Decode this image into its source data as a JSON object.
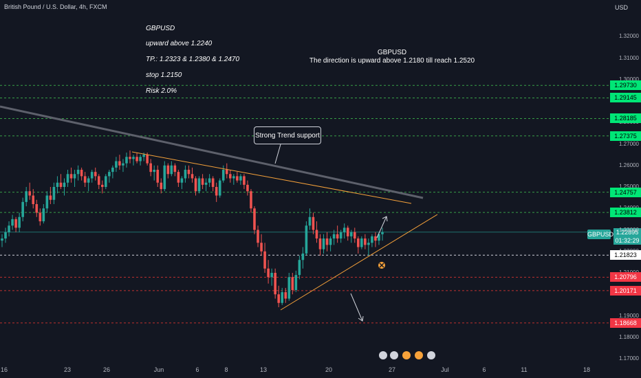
{
  "header": {
    "title": "British Pound / U.S. Dollar, 4h, FXCM",
    "currency": "USD"
  },
  "notes": {
    "left": [
      "GBPUSD",
      "upward above 1.2240",
      "TP.:  1.2323  & 1.2380 & 1.2470",
      " stop 1.2150",
      "Risk 2.0%"
    ],
    "center_title": "GBPUSD",
    "center_text": "The direction is upward above 1.2180 till reach 1.2520",
    "callout": "Strong Trend support"
  },
  "symbol_tag": "GBPUSD",
  "last_price": {
    "price": "1.22895",
    "countdown": "01:32:29"
  },
  "chart_data": {
    "type": "candlestick",
    "title": "British Pound / U.S. Dollar, 4h, FXCM",
    "ylim": [
      1.17,
      1.33
    ],
    "y_ticks": [
      "1.32000",
      "1.31000",
      "1.30000",
      "1.29000",
      "1.28000",
      "1.27000",
      "1.26000",
      "1.25000",
      "1.24000",
      "1.23000",
      "1.22000",
      "1.21000",
      "1.20000",
      "1.19000",
      "1.18000",
      "1.17000"
    ],
    "x_ticks": [
      "16",
      "23",
      "26",
      "Jun",
      "6",
      "8",
      "13",
      "20",
      "27",
      "Jul",
      "6",
      "11",
      "18"
    ],
    "price_levels": [
      {
        "value": 1.2973,
        "label": "1.29730",
        "color": "#00e676"
      },
      {
        "value": 1.29145,
        "label": "1.29145",
        "color": "#00e676"
      },
      {
        "value": 1.28185,
        "label": "1.28185",
        "color": "#00e676"
      },
      {
        "value": 1.27375,
        "label": "1.27375",
        "color": "#00e676"
      },
      {
        "value": 1.24757,
        "label": "1.24757",
        "color": "#00e676"
      },
      {
        "value": 1.23812,
        "label": "1.23812",
        "color": "#00e676"
      },
      {
        "value": 1.21823,
        "label": "1.21823",
        "color": "#ffffff"
      },
      {
        "value": 1.20796,
        "label": "1.20796",
        "color": "#f23645"
      },
      {
        "value": 1.20171,
        "label": "1.20171",
        "color": "#f23645"
      },
      {
        "value": 1.18668,
        "label": "1.18668",
        "color": "#f23645"
      }
    ],
    "series": [
      {
        "name": "GBPUSD",
        "ohlc": [
          [
            1.225,
            1.228,
            1.222,
            1.226
          ],
          [
            1.226,
            1.231,
            1.224,
            1.229
          ],
          [
            1.229,
            1.234,
            1.227,
            1.232
          ],
          [
            1.232,
            1.237,
            1.23,
            1.235
          ],
          [
            1.235,
            1.236,
            1.229,
            1.231
          ],
          [
            1.231,
            1.238,
            1.229,
            1.236
          ],
          [
            1.236,
            1.245,
            1.234,
            1.243
          ],
          [
            1.243,
            1.25,
            1.241,
            1.248
          ],
          [
            1.248,
            1.252,
            1.244,
            1.246
          ],
          [
            1.246,
            1.249,
            1.24,
            1.242
          ],
          [
            1.242,
            1.244,
            1.236,
            1.238
          ],
          [
            1.238,
            1.24,
            1.232,
            1.234
          ],
          [
            1.234,
            1.242,
            1.233,
            1.24
          ],
          [
            1.24,
            1.248,
            1.238,
            1.246
          ],
          [
            1.246,
            1.25,
            1.242,
            1.244
          ],
          [
            1.244,
            1.252,
            1.242,
            1.25
          ],
          [
            1.25,
            1.255,
            1.247,
            1.252
          ],
          [
            1.252,
            1.256,
            1.249,
            1.25
          ],
          [
            1.25,
            1.254,
            1.246,
            1.252
          ],
          [
            1.252,
            1.258,
            1.25,
            1.256
          ],
          [
            1.256,
            1.259,
            1.252,
            1.254
          ],
          [
            1.254,
            1.258,
            1.25,
            1.256
          ],
          [
            1.256,
            1.26,
            1.253,
            1.258
          ],
          [
            1.258,
            1.259,
            1.253,
            1.255
          ],
          [
            1.255,
            1.257,
            1.25,
            1.252
          ],
          [
            1.252,
            1.255,
            1.248,
            1.254
          ],
          [
            1.254,
            1.258,
            1.252,
            1.257
          ],
          [
            1.257,
            1.259,
            1.253,
            1.255
          ],
          [
            1.255,
            1.256,
            1.249,
            1.251
          ],
          [
            1.251,
            1.253,
            1.247,
            1.25
          ],
          [
            1.25,
            1.256,
            1.249,
            1.255
          ],
          [
            1.255,
            1.258,
            1.252,
            1.257
          ],
          [
            1.257,
            1.26,
            1.254,
            1.259
          ],
          [
            1.259,
            1.264,
            1.257,
            1.262
          ],
          [
            1.262,
            1.265,
            1.258,
            1.26
          ],
          [
            1.26,
            1.263,
            1.257,
            1.261
          ],
          [
            1.261,
            1.266,
            1.259,
            1.264
          ],
          [
            1.264,
            1.267,
            1.261,
            1.263
          ],
          [
            1.263,
            1.265,
            1.26,
            1.264
          ],
          [
            1.264,
            1.266,
            1.261,
            1.262
          ],
          [
            1.262,
            1.265,
            1.26,
            1.264
          ],
          [
            1.264,
            1.266,
            1.262,
            1.265
          ],
          [
            1.265,
            1.266,
            1.26,
            1.261
          ],
          [
            1.261,
            1.263,
            1.255,
            1.257
          ],
          [
            1.257,
            1.26,
            1.253,
            1.258
          ],
          [
            1.258,
            1.26,
            1.25,
            1.252
          ],
          [
            1.252,
            1.254,
            1.247,
            1.249
          ],
          [
            1.249,
            1.262,
            1.248,
            1.26
          ],
          [
            1.26,
            1.261,
            1.254,
            1.256
          ],
          [
            1.256,
            1.262,
            1.255,
            1.26
          ],
          [
            1.26,
            1.261,
            1.255,
            1.257
          ],
          [
            1.257,
            1.258,
            1.25,
            1.252
          ],
          [
            1.252,
            1.255,
            1.249,
            1.254
          ],
          [
            1.254,
            1.26,
            1.252,
            1.258
          ],
          [
            1.258,
            1.26,
            1.254,
            1.256
          ],
          [
            1.256,
            1.259,
            1.252,
            1.254
          ],
          [
            1.254,
            1.255,
            1.246,
            1.248
          ],
          [
            1.248,
            1.255,
            1.247,
            1.254
          ],
          [
            1.254,
            1.256,
            1.249,
            1.251
          ],
          [
            1.251,
            1.254,
            1.248,
            1.252
          ],
          [
            1.252,
            1.256,
            1.25,
            1.254
          ],
          [
            1.254,
            1.255,
            1.248,
            1.25
          ],
          [
            1.25,
            1.252,
            1.243,
            1.246
          ],
          [
            1.246,
            1.254,
            1.245,
            1.253
          ],
          [
            1.253,
            1.26,
            1.252,
            1.258
          ],
          [
            1.258,
            1.261,
            1.254,
            1.256
          ],
          [
            1.256,
            1.258,
            1.252,
            1.254
          ],
          [
            1.254,
            1.256,
            1.251,
            1.255
          ],
          [
            1.255,
            1.257,
            1.252,
            1.253
          ],
          [
            1.253,
            1.256,
            1.251,
            1.255
          ],
          [
            1.255,
            1.256,
            1.249,
            1.251
          ],
          [
            1.251,
            1.253,
            1.246,
            1.248
          ],
          [
            1.248,
            1.249,
            1.238,
            1.24
          ],
          [
            1.24,
            1.241,
            1.228,
            1.23
          ],
          [
            1.23,
            1.232,
            1.222,
            1.224
          ],
          [
            1.224,
            1.228,
            1.218,
            1.22
          ],
          [
            1.22,
            1.224,
            1.21,
            1.212
          ],
          [
            1.212,
            1.216,
            1.205,
            1.208
          ],
          [
            1.208,
            1.212,
            1.204,
            1.21
          ],
          [
            1.21,
            1.212,
            1.198,
            1.2
          ],
          [
            1.2,
            1.204,
            1.194,
            1.196
          ],
          [
            1.196,
            1.203,
            1.195,
            1.201
          ],
          [
            1.201,
            1.203,
            1.196,
            1.198
          ],
          [
            1.198,
            1.21,
            1.197,
            1.208
          ],
          [
            1.208,
            1.21,
            1.2,
            1.202
          ],
          [
            1.202,
            1.211,
            1.201,
            1.209
          ],
          [
            1.209,
            1.218,
            1.207,
            1.216
          ],
          [
            1.216,
            1.222,
            1.212,
            1.219
          ],
          [
            1.219,
            1.234,
            1.218,
            1.232
          ],
          [
            1.232,
            1.24,
            1.23,
            1.236
          ],
          [
            1.236,
            1.238,
            1.228,
            1.23
          ],
          [
            1.23,
            1.234,
            1.224,
            1.226
          ],
          [
            1.226,
            1.228,
            1.218,
            1.221
          ],
          [
            1.221,
            1.228,
            1.219,
            1.226
          ],
          [
            1.226,
            1.229,
            1.22,
            1.223
          ],
          [
            1.223,
            1.227,
            1.22,
            1.226
          ],
          [
            1.226,
            1.23,
            1.223,
            1.228
          ],
          [
            1.228,
            1.232,
            1.224,
            1.226
          ],
          [
            1.226,
            1.23,
            1.224,
            1.229
          ],
          [
            1.229,
            1.233,
            1.226,
            1.231
          ],
          [
            1.231,
            1.232,
            1.225,
            1.227
          ],
          [
            1.227,
            1.23,
            1.224,
            1.229
          ],
          [
            1.229,
            1.231,
            1.224,
            1.226
          ],
          [
            1.226,
            1.227,
            1.219,
            1.222
          ],
          [
            1.222,
            1.227,
            1.221,
            1.226
          ],
          [
            1.226,
            1.228,
            1.221,
            1.223
          ],
          [
            1.223,
            1.226,
            1.218,
            1.224
          ],
          [
            1.224,
            1.228,
            1.222,
            1.227
          ],
          [
            1.227,
            1.229,
            1.222,
            1.225
          ],
          [
            1.225,
            1.229,
            1.223,
            1.228
          ],
          [
            1.228,
            1.231,
            1.225,
            1.229
          ]
        ]
      }
    ]
  }
}
